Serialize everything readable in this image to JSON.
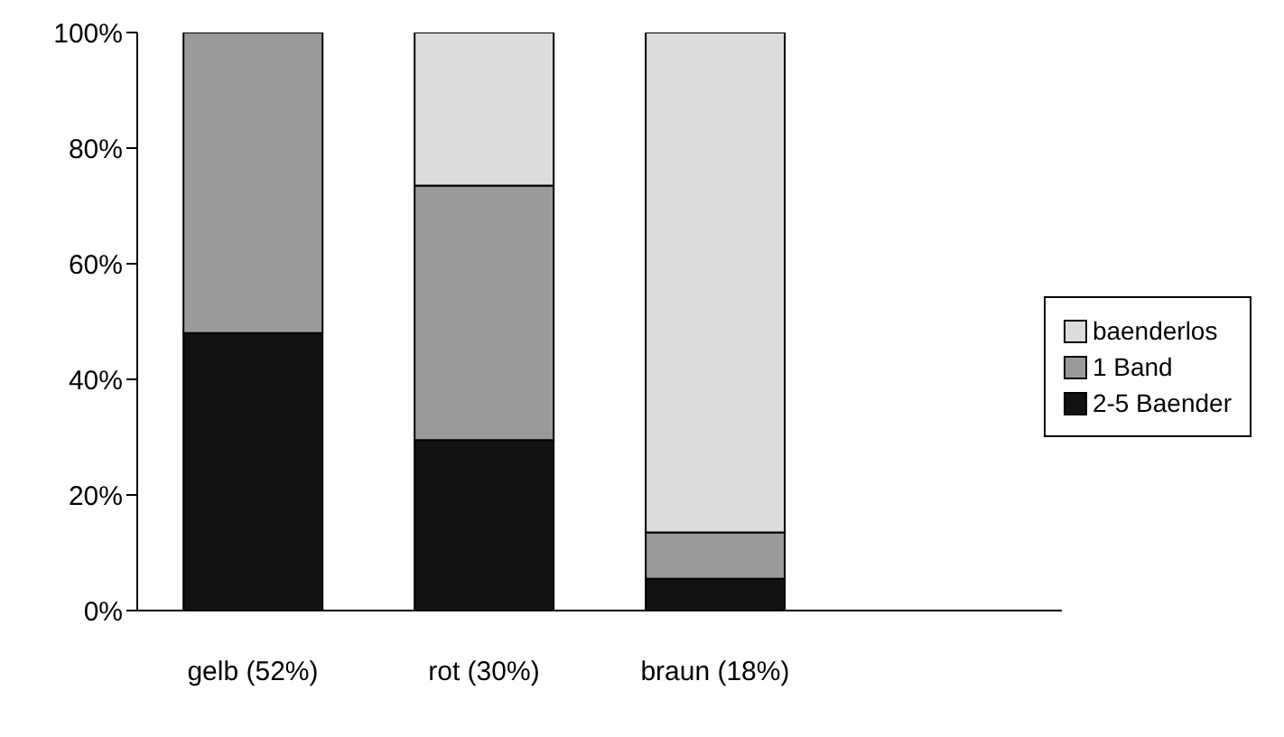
{
  "chart_data": {
    "type": "bar",
    "stacked": true,
    "categories": [
      "gelb (52%)",
      "rot (30%)",
      "braun (18%)",
      null
    ],
    "series": [
      {
        "name": "2-5 Baender",
        "color": "#111111",
        "values": [
          48,
          29.5,
          5.5,
          null
        ]
      },
      {
        "name": "1 Band",
        "color": "#9a9a9a",
        "values": [
          52,
          44,
          8,
          null
        ]
      },
      {
        "name": "baenderlos",
        "color": "#dcdcdc",
        "values": [
          0,
          26.5,
          86.5,
          null
        ]
      }
    ],
    "ylim": [
      0,
      100
    ],
    "yticks": [
      {
        "value": 0,
        "label": "0%"
      },
      {
        "value": 20,
        "label": "20%"
      },
      {
        "value": 40,
        "label": "40%"
      },
      {
        "value": 60,
        "label": "60%"
      },
      {
        "value": 80,
        "label": "80%"
      },
      {
        "value": 100,
        "label": "100%"
      }
    ],
    "grid": false,
    "legend": "right"
  }
}
